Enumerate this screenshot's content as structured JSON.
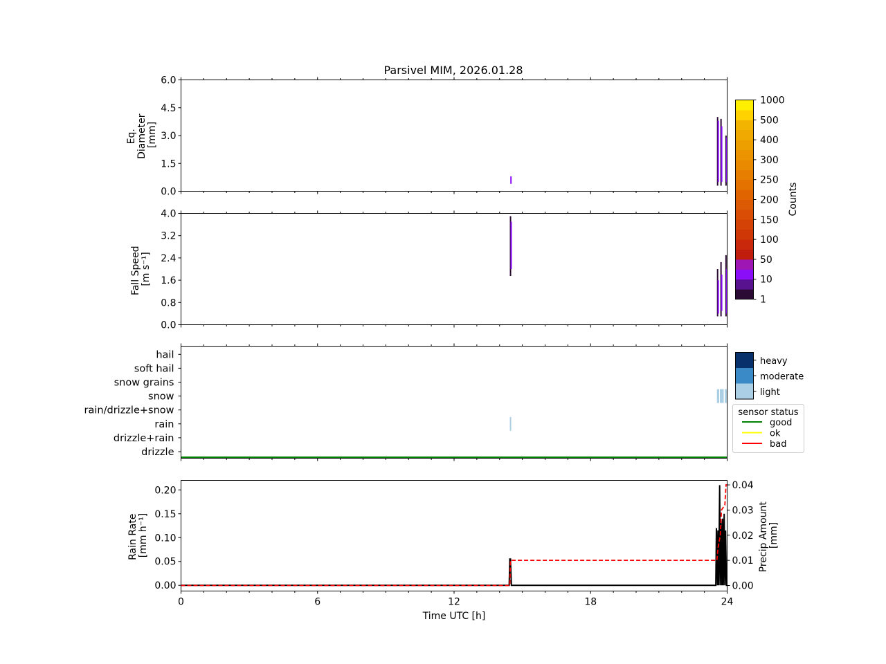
{
  "title": "Parsivel MIM, 2026.01.28",
  "chart_data": [
    {
      "panel": "diameter",
      "type": "heatmap",
      "ylabel": [
        "Eq.",
        "Diameter",
        "[mm]"
      ],
      "ylim": [
        0,
        6
      ],
      "yticks": [
        "0.0",
        "1.5",
        "3.0",
        "4.5",
        "6.0"
      ],
      "xlim": [
        0,
        24
      ],
      "cells": [
        {
          "t": 14.47,
          "ymin": 0.4,
          "ymax": 0.8,
          "count": 10
        },
        {
          "t": 23.55,
          "ymin": 0.3,
          "ymax": 4.0,
          "count": 1
        },
        {
          "t": 23.58,
          "ymin": 0.5,
          "ymax": 3.8,
          "count": 10
        },
        {
          "t": 23.7,
          "ymin": 0.3,
          "ymax": 3.9,
          "count": 1
        },
        {
          "t": 23.73,
          "ymin": 0.5,
          "ymax": 3.5,
          "count": 10
        },
        {
          "t": 23.92,
          "ymin": 0.3,
          "ymax": 3.0,
          "count": 1
        },
        {
          "t": 23.95,
          "ymin": 0.5,
          "ymax": 2.9,
          "count": 10
        }
      ]
    },
    {
      "panel": "fall_speed",
      "type": "heatmap",
      "ylabel": [
        "Fall Speed",
        "[m s⁻¹]"
      ],
      "ylim": [
        0,
        4
      ],
      "yticks": [
        "0.0",
        "0.8",
        "1.6",
        "2.4",
        "3.2",
        "4.0"
      ],
      "xlim": [
        0,
        24
      ],
      "cells": [
        {
          "t": 14.45,
          "ymin": 1.75,
          "ymax": 3.9,
          "count": 1
        },
        {
          "t": 14.48,
          "ymin": 2.0,
          "ymax": 3.7,
          "count": 10
        },
        {
          "t": 23.55,
          "ymin": 0.3,
          "ymax": 2.0,
          "count": 1
        },
        {
          "t": 23.58,
          "ymin": 0.4,
          "ymax": 1.6,
          "count": 10
        },
        {
          "t": 23.7,
          "ymin": 0.3,
          "ymax": 2.25,
          "count": 1
        },
        {
          "t": 23.73,
          "ymin": 0.5,
          "ymax": 1.8,
          "count": 10
        },
        {
          "t": 23.92,
          "ymin": 0.3,
          "ymax": 2.5,
          "count": 1
        },
        {
          "t": 23.95,
          "ymin": 0.4,
          "ymax": 2.0,
          "count": 10
        }
      ]
    },
    {
      "panel": "weather_type",
      "type": "heatmap",
      "categories": [
        "drizzle",
        "drizzle+rain",
        "rain",
        "rain/drizzle+snow",
        "snow",
        "snow grains",
        "soft hail",
        "hail"
      ],
      "xlim": [
        0,
        24
      ],
      "events": [
        {
          "t_start": 14.45,
          "t_end": 14.5,
          "category": "rain",
          "intensity": "light"
        },
        {
          "t_start": 23.55,
          "t_end": 23.65,
          "category": "snow",
          "intensity": "light"
        },
        {
          "t_start": 23.68,
          "t_end": 23.85,
          "category": "snow",
          "intensity": "light"
        },
        {
          "t_start": 23.9,
          "t_end": 24.0,
          "category": "snow",
          "intensity": "light"
        }
      ],
      "sensor_status": {
        "value": "good",
        "t_start": 0,
        "t_end": 24
      }
    },
    {
      "panel": "rain",
      "type": "line",
      "xlabel": "Time UTC [h]",
      "xlim": [
        0,
        24
      ],
      "xticks": [
        "0",
        "6",
        "12",
        "18",
        "24"
      ],
      "ylabel": [
        "Rain Rate",
        "[mm h⁻¹]"
      ],
      "ylim": [
        -0.012,
        0.22
      ],
      "yticks": [
        "0.00",
        "0.05",
        "0.10",
        "0.15",
        "0.20"
      ],
      "y2label": [
        "Precip Amount",
        "[mm]"
      ],
      "y2lim": [
        -0.0022,
        0.0418
      ],
      "y2ticks": [
        "0.00",
        "0.01",
        "0.02",
        "0.03",
        "0.04"
      ],
      "series": [
        {
          "name": "Rain Rate",
          "axis": "left",
          "color": "#000000",
          "style": "solid",
          "x": [
            0,
            14.42,
            14.45,
            14.48,
            14.52,
            23.5,
            23.53,
            23.57,
            23.6,
            23.63,
            23.67,
            23.7,
            23.73,
            23.77,
            23.8,
            23.83,
            23.87,
            23.9,
            23.93,
            23.97,
            24
          ],
          "y": [
            0,
            0,
            0.055,
            0.055,
            0,
            0,
            0.12,
            0,
            0.115,
            0,
            0.21,
            0,
            0.135,
            0,
            0.14,
            0,
            0.15,
            0,
            0.115,
            0,
            0
          ]
        },
        {
          "name": "Precip Amount",
          "axis": "right",
          "color": "#ff0000",
          "style": "dashed",
          "x": [
            0,
            14.45,
            14.48,
            23.55,
            23.6,
            23.7,
            23.75,
            23.9,
            23.95,
            24
          ],
          "y": [
            0,
            0,
            0.01,
            0.01,
            0.015,
            0.02,
            0.03,
            0.032,
            0.04,
            0.04
          ]
        }
      ]
    }
  ],
  "colorbar": {
    "label": "Counts",
    "ticks": [
      "1",
      "10",
      "50",
      "100",
      "150",
      "200",
      "250",
      "300",
      "400",
      "500",
      "1000"
    ],
    "colors": [
      "#2b0a34",
      "#58118f",
      "#8a0ef7",
      "#9e16b4",
      "#c11d0c",
      "#c9290a",
      "#cf3707",
      "#d54205",
      "#d94d04",
      "#dc5a03",
      "#e06501",
      "#e47200",
      "#e77e00",
      "#ea8a00",
      "#eb9400",
      "#ee9f00",
      "#f0a900",
      "#f2b400",
      "#ffd200",
      "#ffef00"
    ]
  },
  "intensity_legend": {
    "items": [
      {
        "label": "heavy",
        "color": "#08306b"
      },
      {
        "label": "moderate",
        "color": "#3a8ac7"
      },
      {
        "label": "light",
        "color": "#abd0e6"
      }
    ]
  },
  "sensor_legend": {
    "title": "sensor status",
    "items": [
      {
        "label": "good",
        "color": "#008000"
      },
      {
        "label": "ok",
        "color": "#ffff00"
      },
      {
        "label": "bad",
        "color": "#ff0000"
      }
    ]
  }
}
